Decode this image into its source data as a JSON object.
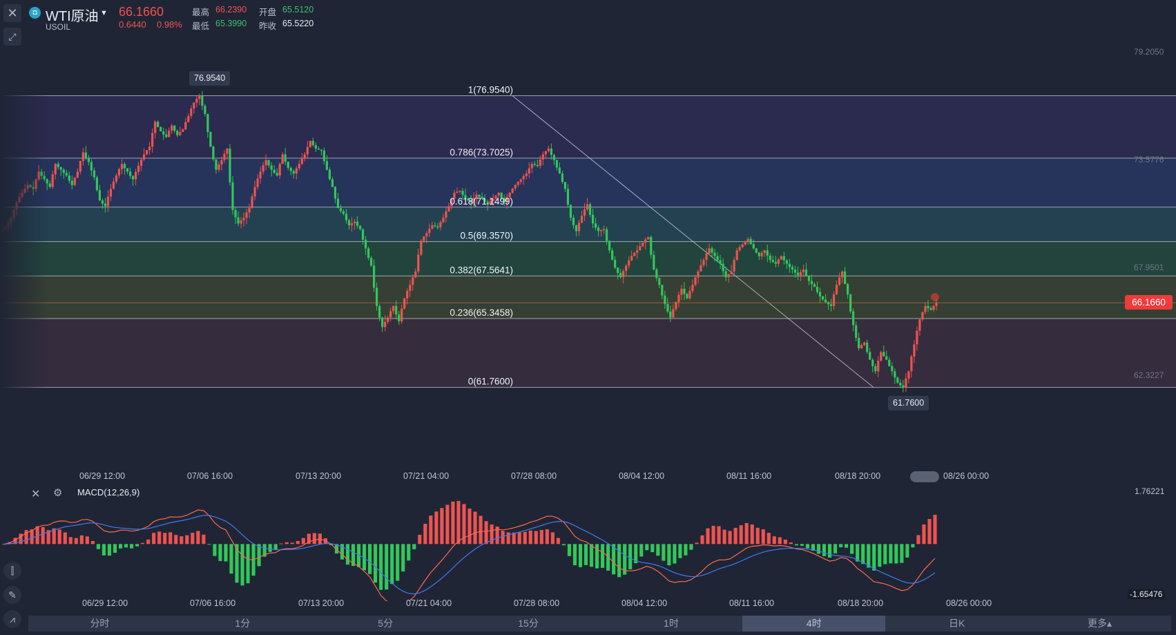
{
  "header": {
    "symbol_name": "WTI原油",
    "symbol_code": "USOIL",
    "logo_icon": "oil-drop-icon",
    "last_price": "66.1660",
    "change": "0.6440",
    "change_pct": "0.98%",
    "stats": {
      "high_label": "最高",
      "high": "66.2390",
      "open_label": "开盘",
      "open": "65.5120",
      "low_label": "最低",
      "low": "65.3990",
      "prev_close_label": "昨收",
      "prev_close": "65.5220"
    }
  },
  "price_axis": {
    "labels": [
      "79.2050",
      "73.5776",
      "67.9501",
      "62.3227"
    ],
    "current_price_tag": "66.1660",
    "high_marker": "76.9540",
    "low_marker": "61.7600"
  },
  "fib_levels": [
    {
      "label": "1(76.9540)",
      "value": 76.954
    },
    {
      "label": "0.786(73.7025)",
      "value": 73.7025
    },
    {
      "label": "0.618(71.1499)",
      "value": 71.1499
    },
    {
      "label": "0.5(69.3570)",
      "value": 69.357
    },
    {
      "label": "0.382(67.5641)",
      "value": 67.5641
    },
    {
      "label": "0.236(65.3458)",
      "value": 65.3458
    },
    {
      "label": "0(61.7600)",
      "value": 61.76
    }
  ],
  "time_axis": [
    "06/29 12:00",
    "07/06 16:00",
    "07/13 20:00",
    "07/21 04:00",
    "07/28 08:00",
    "08/04 12:00",
    "08/11 16:00",
    "08/18 20:00",
    "08/26 00:00"
  ],
  "macd": {
    "title": "MACD(12,26,9)",
    "axis_top": "1.76221",
    "axis_bottom": "-1.65476"
  },
  "chart_data": {
    "type": "candlestick",
    "symbol": "USOIL",
    "timeframe": "4时",
    "ylim": [
      60.2,
      80.0
    ],
    "close_series": [
      70.1,
      70.6,
      71.4,
      71.9,
      72.3,
      72.1,
      73.0,
      72.6,
      72.2,
      73.4,
      73.1,
      72.8,
      72.3,
      73.0,
      74.0,
      73.5,
      72.7,
      71.5,
      71.2,
      72.1,
      72.8,
      73.4,
      73.0,
      72.6,
      73.3,
      73.9,
      74.3,
      75.6,
      75.1,
      74.8,
      75.4,
      74.9,
      75.2,
      75.9,
      76.6,
      76.95,
      76.0,
      74.3,
      73.1,
      73.6,
      74.2,
      71.0,
      70.3,
      70.6,
      71.1,
      72.2,
      73.0,
      73.6,
      73.1,
      72.8,
      73.9,
      73.2,
      72.9,
      73.4,
      73.9,
      74.6,
      74.2,
      74.1,
      73.1,
      72.2,
      71.1,
      70.8,
      70.2,
      70.4,
      70.0,
      69.0,
      68.1,
      66.0,
      64.9,
      65.4,
      66.0,
      65.2,
      66.4,
      67.1,
      67.8,
      69.4,
      69.8,
      70.2,
      70.1,
      70.6,
      71.2,
      71.9,
      72.0,
      71.6,
      71.4,
      71.8,
      71.6,
      71.3,
      71.6,
      71.9,
      71.4,
      71.9,
      72.3,
      72.6,
      72.9,
      73.4,
      73.3,
      73.9,
      74.2,
      73.6,
      72.9,
      72.1,
      70.6,
      69.9,
      70.7,
      71.3,
      70.3,
      69.9,
      70.0,
      68.9,
      68.0,
      67.5,
      68.1,
      68.6,
      68.9,
      69.3,
      69.6,
      67.9,
      67.1,
      66.1,
      65.4,
      66.2,
      66.9,
      66.4,
      67.1,
      67.8,
      68.4,
      69.0,
      68.6,
      68.2,
      67.5,
      67.8,
      68.9,
      69.2,
      69.5,
      69.0,
      68.6,
      68.9,
      68.4,
      68.2,
      68.6,
      68.2,
      67.9,
      67.6,
      67.9,
      67.3,
      67.0,
      66.5,
      66.2,
      66.0,
      67.1,
      67.8,
      66.6,
      65.0,
      63.8,
      64.1,
      63.2,
      62.6,
      63.6,
      63.2,
      62.6,
      62.0,
      61.76,
      62.6,
      64.0,
      65.3,
      66.0,
      65.8,
      66.17
    ]
  }
}
